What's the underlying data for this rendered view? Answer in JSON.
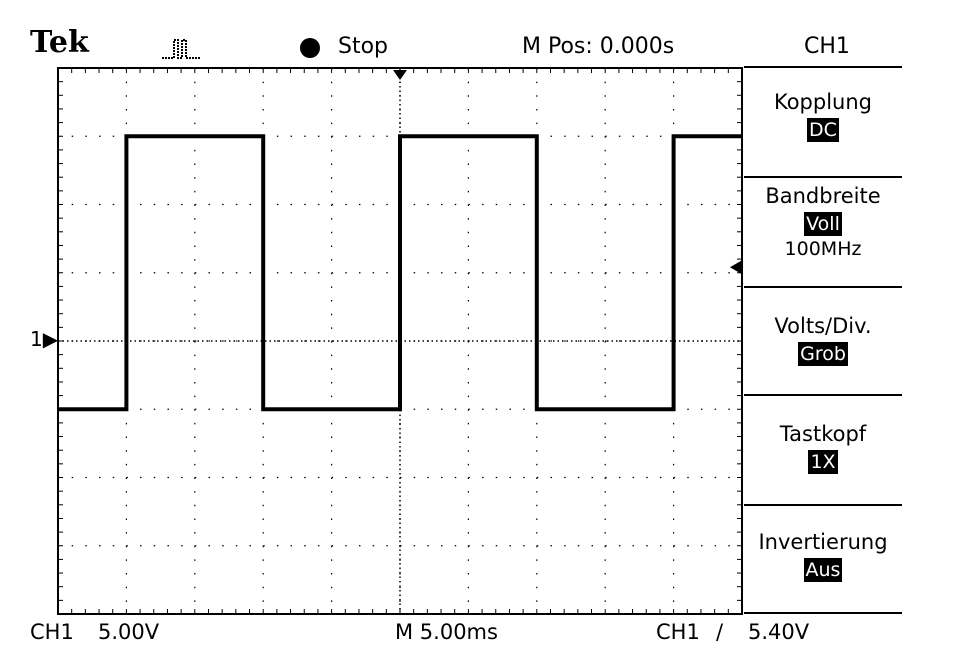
{
  "header": {
    "brand": "Tek",
    "acquire_state": "Stop",
    "horizontal_position": "M Pos: 0.000s",
    "menu_title": "CH1"
  },
  "side_menu": [
    {
      "label": "Kopplung",
      "value": "DC"
    },
    {
      "label": "Bandbreite",
      "value": "Voll",
      "extra": "100MHz"
    },
    {
      "label": "Volts/Div.",
      "value": "Grob"
    },
    {
      "label": "Tastkopf",
      "value": "1X"
    },
    {
      "label": "Invertierung",
      "value": "Aus"
    }
  ],
  "channel_marker": "1",
  "footer": {
    "channel": "CH1",
    "volts_per_div": "5.00V",
    "time_per_div": "M 5.00ms",
    "trigger_source": "CH1",
    "trigger_slope": "/",
    "trigger_level": "5.40V"
  },
  "chart_data": {
    "type": "line",
    "x_unit": "ms",
    "y_unit": "V",
    "xlim": [
      -25,
      25
    ],
    "ylim": [
      -20,
      20
    ],
    "grid": true,
    "series": [
      {
        "x": [
          -25,
          -20,
          -20,
          -10,
          -10,
          0,
          0,
          10,
          10,
          20,
          20,
          25
        ],
        "y": [
          -5,
          -5,
          15,
          15,
          -5,
          -5,
          15,
          15,
          -5,
          -5,
          15,
          15
        ]
      }
    ]
  },
  "colors": {
    "background": "#ffffff",
    "trace": "#000000",
    "grid": "#000000"
  }
}
